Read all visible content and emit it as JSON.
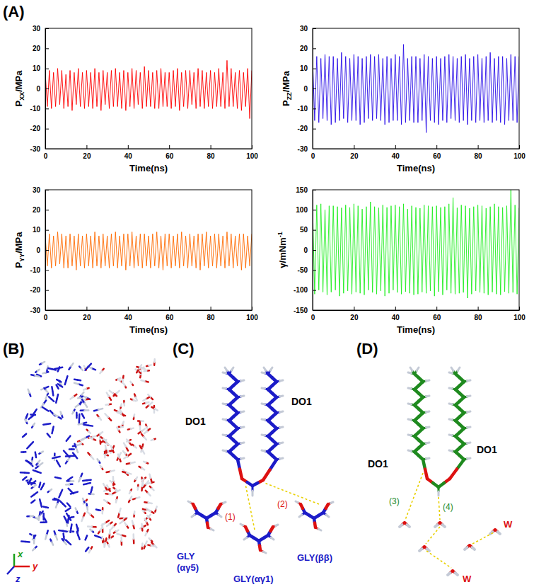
{
  "chart_data": [
    {
      "type": "line",
      "y_label": {
        "base": "P",
        "sub": "XX",
        "after": "/MPa"
      },
      "x_label": "Time(ns)",
      "x": [
        0,
        1,
        2,
        3,
        4,
        5,
        6,
        7,
        8,
        9,
        10,
        11,
        12,
        13,
        14,
        15,
        16,
        17,
        18,
        19,
        20,
        21,
        22,
        23,
        24,
        25,
        26,
        27,
        28,
        29,
        30,
        31,
        32,
        33,
        34,
        35,
        36,
        37,
        38,
        39,
        40,
        41,
        42,
        43,
        44,
        45,
        46,
        47,
        48,
        49,
        50,
        51,
        52,
        53,
        54,
        55,
        56,
        57,
        58,
        59,
        60,
        61,
        62,
        63,
        64,
        65,
        66,
        67,
        68,
        69,
        70,
        71,
        72,
        73,
        74,
        75,
        76,
        77,
        78,
        79,
        80,
        81,
        82,
        83,
        84,
        85,
        86,
        87,
        88,
        89,
        90,
        91,
        92,
        93,
        94,
        95,
        96,
        97,
        98,
        99,
        100
      ],
      "series": [
        {
          "color": "#ff0000",
          "values": [
            8,
            -9,
            9,
            -10,
            8,
            -9,
            10,
            -8,
            9,
            -10,
            7,
            -9,
            9,
            -11,
            8,
            -8,
            10,
            -9,
            8,
            -10,
            9,
            -9,
            8,
            -10,
            10,
            -9,
            8,
            -11,
            9,
            -8,
            8,
            -10,
            9,
            -9,
            10,
            -9,
            8,
            -10,
            9,
            -11,
            8,
            -9,
            10,
            -10,
            9,
            -8,
            8,
            -10,
            11,
            -9,
            9,
            -9,
            8,
            -10,
            9,
            -10,
            10,
            -9,
            8,
            -9,
            8,
            -10,
            9,
            -9,
            10,
            -11,
            8,
            -9,
            9,
            -10,
            9,
            -8,
            8,
            -10,
            10,
            -9,
            9,
            -10,
            8,
            -9,
            9,
            -10,
            8,
            -9,
            10,
            -9,
            8,
            -10,
            14,
            -9,
            10,
            -9,
            8,
            -10,
            9,
            -11,
            8,
            -9,
            10,
            -15,
            9
          ]
        }
      ],
      "xlim": [
        0,
        100
      ],
      "xticks": [
        0,
        20,
        40,
        60,
        80,
        100
      ],
      "ylim": [
        -30,
        30
      ],
      "yticks": [
        -30,
        -20,
        -10,
        0,
        10,
        20,
        30
      ]
    },
    {
      "type": "line",
      "y_label": {
        "base": "P",
        "sub": "ZZ",
        "after": "/MPa"
      },
      "x_label": "Time(ns)",
      "x": [
        0,
        1,
        2,
        3,
        4,
        5,
        6,
        7,
        8,
        9,
        10,
        11,
        12,
        13,
        14,
        15,
        16,
        17,
        18,
        19,
        20,
        21,
        22,
        23,
        24,
        25,
        26,
        27,
        28,
        29,
        30,
        31,
        32,
        33,
        34,
        35,
        36,
        37,
        38,
        39,
        40,
        41,
        42,
        43,
        44,
        45,
        46,
        47,
        48,
        49,
        50,
        51,
        52,
        53,
        54,
        55,
        56,
        57,
        58,
        59,
        60,
        61,
        62,
        63,
        64,
        65,
        66,
        67,
        68,
        69,
        70,
        71,
        72,
        73,
        74,
        75,
        76,
        77,
        78,
        79,
        80,
        81,
        82,
        83,
        84,
        85,
        86,
        87,
        88,
        89,
        90,
        91,
        92,
        93,
        94,
        95,
        96,
        97,
        98,
        99,
        100
      ],
      "series": [
        {
          "color": "#2a10e8",
          "values": [
            15,
            -16,
            16,
            -17,
            15,
            -15,
            17,
            -16,
            16,
            -18,
            16,
            -17,
            15,
            -16,
            18,
            -15,
            16,
            -17,
            15,
            -16,
            17,
            -16,
            16,
            -18,
            15,
            -17,
            16,
            -15,
            17,
            -16,
            16,
            -15,
            17,
            -16,
            15,
            -18,
            16,
            -17,
            15,
            -16,
            17,
            -16,
            16,
            -18,
            22,
            -17,
            15,
            -16,
            16,
            -17,
            16,
            -17,
            15,
            -16,
            17,
            -22,
            16,
            -16,
            15,
            -17,
            16,
            -18,
            15,
            -16,
            16,
            -17,
            17,
            -15,
            16,
            -16,
            15,
            -17,
            16,
            -16,
            17,
            -18,
            15,
            -16,
            16,
            -17,
            17,
            -16,
            15,
            -17,
            16,
            -16,
            18,
            -17,
            15,
            -16,
            16,
            -17,
            16,
            -18,
            15,
            -16,
            17,
            -16,
            16,
            -17,
            16
          ]
        }
      ],
      "xlim": [
        0,
        100
      ],
      "xticks": [
        0,
        20,
        40,
        60,
        80,
        100
      ],
      "ylim": [
        -30,
        30
      ],
      "yticks": [
        -30,
        -20,
        -10,
        0,
        10,
        20,
        30
      ]
    },
    {
      "type": "line",
      "y_label": {
        "base": "P",
        "sub": "YY",
        "after": "/MPa"
      },
      "x_label": "Time(ns)",
      "x": [
        0,
        1,
        2,
        3,
        4,
        5,
        6,
        7,
        8,
        9,
        10,
        11,
        12,
        13,
        14,
        15,
        16,
        17,
        18,
        19,
        20,
        21,
        22,
        23,
        24,
        25,
        26,
        27,
        28,
        29,
        30,
        31,
        32,
        33,
        34,
        35,
        36,
        37,
        38,
        39,
        40,
        41,
        42,
        43,
        44,
        45,
        46,
        47,
        48,
        49,
        50,
        51,
        52,
        53,
        54,
        55,
        56,
        57,
        58,
        59,
        60,
        61,
        62,
        63,
        64,
        65,
        66,
        67,
        68,
        69,
        70,
        71,
        72,
        73,
        74,
        75,
        76,
        77,
        78,
        79,
        80,
        81,
        82,
        83,
        84,
        85,
        86,
        87,
        88,
        89,
        90,
        91,
        92,
        93,
        94,
        95,
        96,
        97,
        98,
        99,
        100
      ],
      "series": [
        {
          "color": "#ff6a00",
          "values": [
            7,
            -8,
            8,
            -9,
            7,
            -8,
            9,
            -7,
            8,
            -9,
            7,
            -9,
            8,
            -8,
            7,
            -10,
            8,
            -8,
            7,
            -9,
            8,
            -8,
            7,
            -9,
            9,
            -8,
            7,
            -9,
            8,
            -8,
            7,
            -9,
            8,
            -8,
            9,
            -9,
            7,
            -8,
            8,
            -10,
            8,
            -8,
            9,
            -9,
            7,
            -8,
            8,
            -9,
            8,
            -8,
            7,
            -9,
            8,
            -8,
            9,
            -9,
            7,
            -10,
            8,
            -8,
            8,
            -9,
            7,
            -8,
            8,
            -9,
            9,
            -8,
            7,
            -9,
            8,
            -8,
            7,
            -9,
            8,
            -10,
            8,
            -8,
            9,
            -9,
            7,
            -8,
            8,
            -9,
            8,
            -8,
            7,
            -9,
            9,
            -8,
            8,
            -9,
            7,
            -8,
            8,
            -10,
            8,
            -9,
            7,
            -8,
            8
          ]
        }
      ],
      "xlim": [
        0,
        100
      ],
      "xticks": [
        0,
        20,
        40,
        60,
        80,
        100
      ],
      "ylim": [
        -30,
        30
      ],
      "yticks": [
        -30,
        -20,
        -10,
        0,
        10,
        20,
        30
      ]
    },
    {
      "type": "line",
      "y_label": {
        "base": "γ/mNm",
        "sup": "-1"
      },
      "x_label": "Time(ns)",
      "x": [
        0,
        1,
        2,
        3,
        4,
        5,
        6,
        7,
        8,
        9,
        10,
        11,
        12,
        13,
        14,
        15,
        16,
        17,
        18,
        19,
        20,
        21,
        22,
        23,
        24,
        25,
        26,
        27,
        28,
        29,
        30,
        31,
        32,
        33,
        34,
        35,
        36,
        37,
        38,
        39,
        40,
        41,
        42,
        43,
        44,
        45,
        46,
        47,
        48,
        49,
        50,
        51,
        52,
        53,
        54,
        55,
        56,
        57,
        58,
        59,
        60,
        61,
        62,
        63,
        64,
        65,
        66,
        67,
        68,
        69,
        70,
        71,
        72,
        73,
        74,
        75,
        76,
        77,
        78,
        79,
        80,
        81,
        82,
        83,
        84,
        85,
        86,
        87,
        88,
        89,
        90,
        91,
        92,
        93,
        94,
        95,
        96,
        97,
        98,
        99,
        100
      ],
      "series": [
        {
          "color": "#22ee22",
          "values": [
            105,
            -110,
            112,
            -100,
            115,
            -105,
            100,
            -112,
            110,
            -105,
            110,
            -100,
            108,
            -115,
            105,
            -108,
            112,
            -102,
            106,
            -110,
            115,
            -105,
            110,
            -108,
            102,
            -112,
            108,
            -100,
            120,
            -106,
            108,
            -110,
            105,
            -102,
            112,
            -115,
            106,
            -108,
            110,
            -100,
            112,
            -106,
            108,
            -110,
            115,
            -104,
            102,
            -108,
            110,
            -112,
            106,
            -110,
            104,
            -105,
            112,
            -108,
            110,
            -102,
            108,
            -115,
            110,
            -104,
            106,
            -112,
            108,
            -100,
            115,
            -108,
            130,
            -110,
            105,
            -108,
            112,
            -106,
            110,
            -120,
            104,
            -110,
            108,
            -102,
            112,
            -106,
            110,
            -108,
            104,
            -112,
            108,
            -105,
            115,
            -110,
            108,
            -112,
            106,
            -104,
            110,
            -108,
            150,
            -106,
            112,
            -110,
            105
          ]
        }
      ],
      "xlim": [
        0,
        100
      ],
      "xticks": [
        0,
        20,
        40,
        60,
        80,
        100
      ],
      "ylim": [
        -150,
        150
      ],
      "yticks": [
        -150,
        -100,
        -50,
        0,
        50,
        100,
        150
      ]
    }
  ],
  "panel_labels": [
    "(A)",
    "(B)",
    "(C)",
    "(D)"
  ],
  "panel_B": {
    "axis_labels": [
      "x",
      "y",
      "z"
    ]
  },
  "panel_C": {
    "labels": [
      "DO1",
      "DO1",
      "GLY",
      "(αγ5)",
      "GLY(αγ1)",
      "GLY(ββ)"
    ],
    "bonds": [
      "(1)",
      "(2)"
    ]
  },
  "panel_D": {
    "labels": [
      "DO1",
      "DO1",
      "W",
      "W"
    ],
    "bonds": [
      "(3)",
      "(4)"
    ]
  }
}
